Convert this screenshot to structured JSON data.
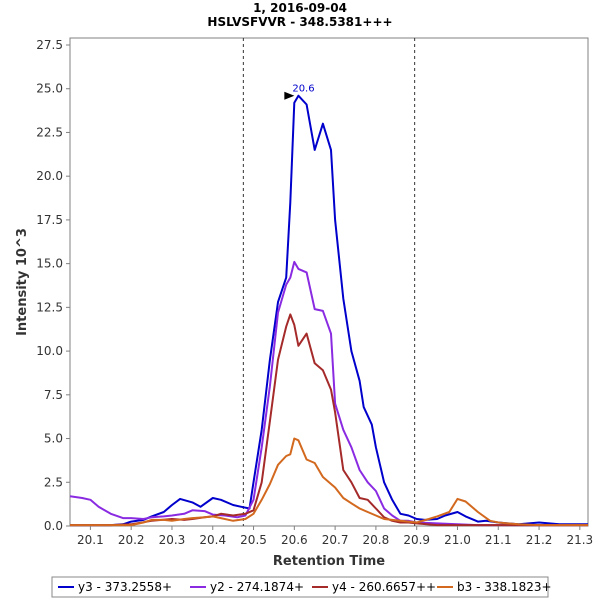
{
  "chart_data": {
    "type": "line",
    "title": "1, 2016-09-04",
    "subtitle": "HSLVSFVVR - 348.5381+++",
    "xlabel": "Retention Time",
    "ylabel": "Intensity 10^3",
    "xlim": [
      20.05,
      21.32
    ],
    "ylim": [
      0,
      27.9
    ],
    "xticks": [
      "20.1",
      "20.2",
      "20.3",
      "20.4",
      "20.5",
      "20.6",
      "20.7",
      "20.8",
      "20.9",
      "21.0",
      "21.1",
      "21.2",
      "21.3"
    ],
    "xtick_values": [
      20.1,
      20.2,
      20.3,
      20.4,
      20.5,
      20.6,
      20.7,
      20.8,
      20.9,
      21.0,
      21.1,
      21.2,
      21.3
    ],
    "yticks": [
      "0.0",
      "2.5",
      "5.0",
      "7.5",
      "10.0",
      "12.5",
      "15.0",
      "17.5",
      "20.0",
      "22.5",
      "25.0",
      "27.5"
    ],
    "ytick_values": [
      0,
      2.5,
      5,
      7.5,
      10,
      12.5,
      15,
      17.5,
      20,
      22.5,
      25,
      27.5
    ],
    "grid": false,
    "legend_position": "bottom",
    "integration_boundaries": [
      20.475,
      20.895
    ],
    "annotation": {
      "label": "20.6",
      "x": 20.6,
      "y": 24.6,
      "color": "#0000cc"
    },
    "series": [
      {
        "name": "y3 - 373.2558+",
        "color": "#0000cc",
        "x": [
          20.05,
          20.1,
          20.15,
          20.18,
          20.2,
          20.23,
          20.25,
          20.28,
          20.3,
          20.32,
          20.35,
          20.37,
          20.4,
          20.42,
          20.45,
          20.47,
          20.49,
          20.5,
          20.52,
          20.54,
          20.56,
          20.58,
          20.59,
          20.6,
          20.61,
          20.63,
          20.65,
          20.67,
          20.69,
          20.7,
          20.72,
          20.74,
          20.76,
          20.77,
          20.79,
          20.8,
          20.82,
          20.84,
          20.86,
          20.88,
          20.9,
          20.92,
          20.95,
          20.97,
          21.0,
          21.02,
          21.05,
          21.07,
          21.1,
          21.15,
          21.2,
          21.25,
          21.3,
          21.32
        ],
        "y": [
          0.05,
          0.05,
          0.05,
          0.1,
          0.25,
          0.35,
          0.55,
          0.8,
          1.2,
          1.55,
          1.35,
          1.1,
          1.6,
          1.5,
          1.2,
          1.1,
          1.0,
          2.5,
          5.5,
          9.5,
          12.8,
          14.2,
          18.5,
          24.2,
          24.6,
          24.1,
          21.5,
          23.0,
          21.5,
          17.5,
          13.0,
          10.0,
          8.3,
          6.8,
          5.8,
          4.5,
          2.5,
          1.5,
          0.7,
          0.6,
          0.4,
          0.35,
          0.4,
          0.6,
          0.8,
          0.55,
          0.25,
          0.3,
          0.2,
          0.1,
          0.2,
          0.1,
          0.1,
          0.1
        ]
      },
      {
        "name": "y2 - 274.1874+",
        "color": "#8a2be2",
        "x": [
          20.05,
          20.08,
          20.1,
          20.12,
          20.15,
          20.18,
          20.2,
          20.23,
          20.25,
          20.28,
          20.3,
          20.33,
          20.35,
          20.38,
          20.4,
          20.43,
          20.46,
          20.48,
          20.5,
          20.52,
          20.54,
          20.56,
          20.58,
          20.59,
          20.6,
          20.61,
          20.63,
          20.65,
          20.67,
          20.69,
          20.7,
          20.72,
          20.74,
          20.76,
          20.78,
          20.8,
          20.82,
          20.84,
          20.86,
          20.88,
          20.9,
          20.95,
          21.0,
          21.05,
          21.1,
          21.2,
          21.3,
          21.32
        ],
        "y": [
          1.7,
          1.6,
          1.5,
          1.1,
          0.7,
          0.45,
          0.45,
          0.4,
          0.5,
          0.55,
          0.6,
          0.7,
          0.9,
          0.85,
          0.65,
          0.6,
          0.5,
          0.6,
          1.5,
          4.5,
          8.0,
          12.2,
          13.8,
          14.2,
          15.1,
          14.7,
          14.5,
          12.4,
          12.3,
          11.0,
          7.0,
          5.5,
          4.5,
          3.2,
          2.5,
          2.0,
          1.0,
          0.6,
          0.3,
          0.3,
          0.2,
          0.15,
          0.1,
          0.05,
          0.05,
          0.05,
          0.05,
          0.05
        ]
      },
      {
        "name": "y4 - 260.6657++",
        "color": "#a52a2a",
        "x": [
          20.05,
          20.1,
          20.15,
          20.2,
          20.25,
          20.3,
          20.33,
          20.35,
          20.38,
          20.4,
          20.42,
          20.45,
          20.48,
          20.5,
          20.52,
          20.54,
          20.56,
          20.58,
          20.59,
          20.6,
          20.61,
          20.63,
          20.65,
          20.67,
          20.69,
          20.7,
          20.72,
          20.74,
          20.76,
          20.78,
          20.8,
          20.82,
          20.84,
          20.86,
          20.88,
          20.9,
          20.95,
          21.0,
          21.05,
          21.1,
          21.2,
          21.3,
          21.32
        ],
        "y": [
          0.05,
          0.05,
          0.05,
          0.1,
          0.3,
          0.4,
          0.35,
          0.4,
          0.5,
          0.55,
          0.7,
          0.6,
          0.7,
          0.9,
          2.5,
          6.0,
          9.5,
          11.4,
          12.1,
          11.5,
          10.3,
          11.0,
          9.3,
          8.9,
          7.8,
          6.5,
          3.2,
          2.5,
          1.6,
          1.5,
          1.0,
          0.5,
          0.3,
          0.2,
          0.2,
          0.15,
          0.05,
          0.05,
          0.05,
          0.05,
          0.05,
          0.05,
          0.05
        ]
      },
      {
        "name": "b3 - 338.1823+",
        "color": "#d2691e",
        "x": [
          20.05,
          20.1,
          20.15,
          20.2,
          20.23,
          20.25,
          20.28,
          20.3,
          20.33,
          20.35,
          20.38,
          20.4,
          20.42,
          20.45,
          20.48,
          20.5,
          20.52,
          20.54,
          20.56,
          20.58,
          20.59,
          20.6,
          20.61,
          20.63,
          20.65,
          20.67,
          20.69,
          20.7,
          20.72,
          20.74,
          20.76,
          20.78,
          20.8,
          20.82,
          20.84,
          20.86,
          20.88,
          20.9,
          20.93,
          20.95,
          20.98,
          21.0,
          21.02,
          21.05,
          21.08,
          21.1,
          21.15,
          21.2,
          21.25,
          21.3,
          21.32
        ],
        "y": [
          0.05,
          0.05,
          0.05,
          0.05,
          0.2,
          0.35,
          0.35,
          0.3,
          0.4,
          0.45,
          0.5,
          0.55,
          0.45,
          0.3,
          0.4,
          0.7,
          1.5,
          2.4,
          3.5,
          4.0,
          4.1,
          5.0,
          4.9,
          3.8,
          3.6,
          2.8,
          2.4,
          2.2,
          1.6,
          1.3,
          1.0,
          0.8,
          0.6,
          0.4,
          0.35,
          0.3,
          0.25,
          0.2,
          0.4,
          0.55,
          0.8,
          1.55,
          1.4,
          0.8,
          0.3,
          0.2,
          0.1,
          0.05,
          0.05,
          0.05,
          0.05
        ]
      }
    ]
  }
}
